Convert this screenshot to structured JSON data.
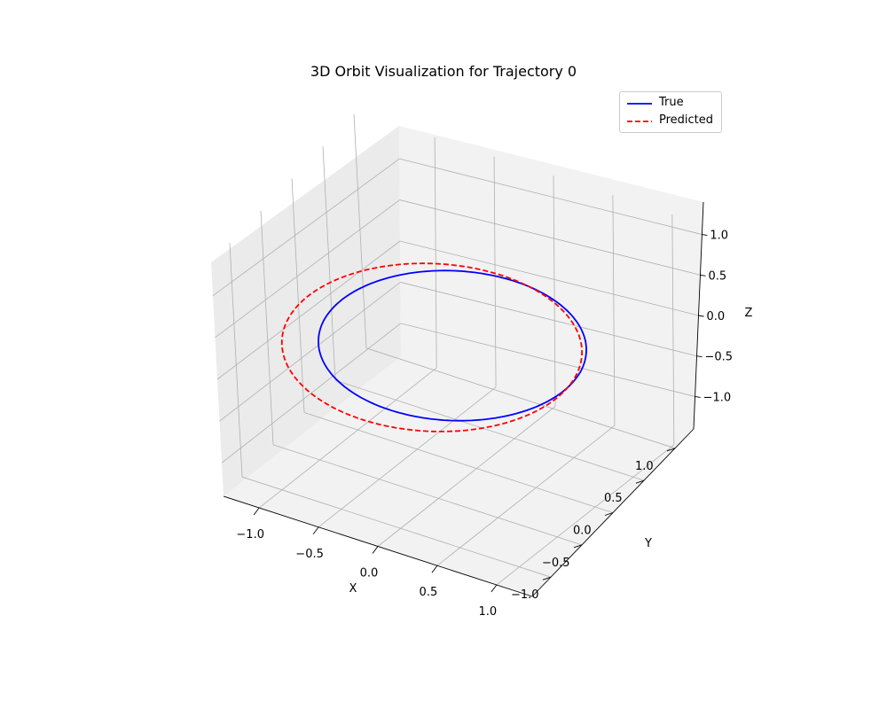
{
  "chart_data": {
    "type": "line",
    "projection": "3d",
    "title": "3D Orbit Visualization for Trajectory 0",
    "xlabel": "X",
    "ylabel": "Y",
    "zlabel": "Z",
    "xlim": [
      -1.3,
      1.3
    ],
    "ylim": [
      -1.3,
      1.3
    ],
    "zlim": [
      -1.4,
      1.4
    ],
    "xticks": [
      -1.0,
      -0.5,
      0.0,
      0.5,
      1.0
    ],
    "xtick_labels": [
      "−1.0",
      "−0.5",
      "0.0",
      "0.5",
      "1.0"
    ],
    "yticks": [
      -1.0,
      -0.5,
      0.0,
      0.5,
      1.0
    ],
    "ytick_labels": [
      "−1.0",
      "−0.5",
      "0.0",
      "0.5",
      "1.0"
    ],
    "zticks": [
      -1.0,
      -0.5,
      0.0,
      0.5,
      1.0
    ],
    "ztick_labels": [
      "−1.0",
      "−0.5",
      "0.0",
      "0.5",
      "1.0"
    ],
    "grid": true,
    "legend_position": "top-right",
    "series": [
      {
        "name": "True",
        "color": "#0000ff",
        "style": "solid",
        "center": [
          0.0,
          0.0,
          0.0
        ],
        "radius": 1.0,
        "z": 0.0
      },
      {
        "name": "Predicted",
        "color": "#ff0000",
        "style": "dashed",
        "center": [
          -0.12,
          -0.1,
          0.0
        ],
        "radius": 1.12,
        "z": 0.0
      }
    ]
  }
}
